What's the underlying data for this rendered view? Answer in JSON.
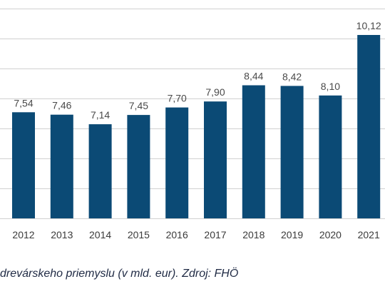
{
  "chart_data": {
    "type": "bar",
    "categories": [
      "2012",
      "2013",
      "2014",
      "2015",
      "2016",
      "2017",
      "2018",
      "2019",
      "2020",
      "2021"
    ],
    "values": [
      7.54,
      7.46,
      7.14,
      7.45,
      7.7,
      7.9,
      8.44,
      8.42,
      8.1,
      10.12
    ],
    "value_labels": [
      "7,54",
      "7,46",
      "7,14",
      "7,45",
      "7,70",
      "7,90",
      "8,44",
      "8,42",
      "8,10",
      "10,12"
    ],
    "ylim": [
      4,
      11
    ],
    "grid": true,
    "bar_color": "#0b4a75",
    "grid_color": "#d0d0d0",
    "label_color": "#4a4a4a"
  },
  "caption": "drevárskeho priemyslu (v mld. eur). Zdroj: FHÖ"
}
